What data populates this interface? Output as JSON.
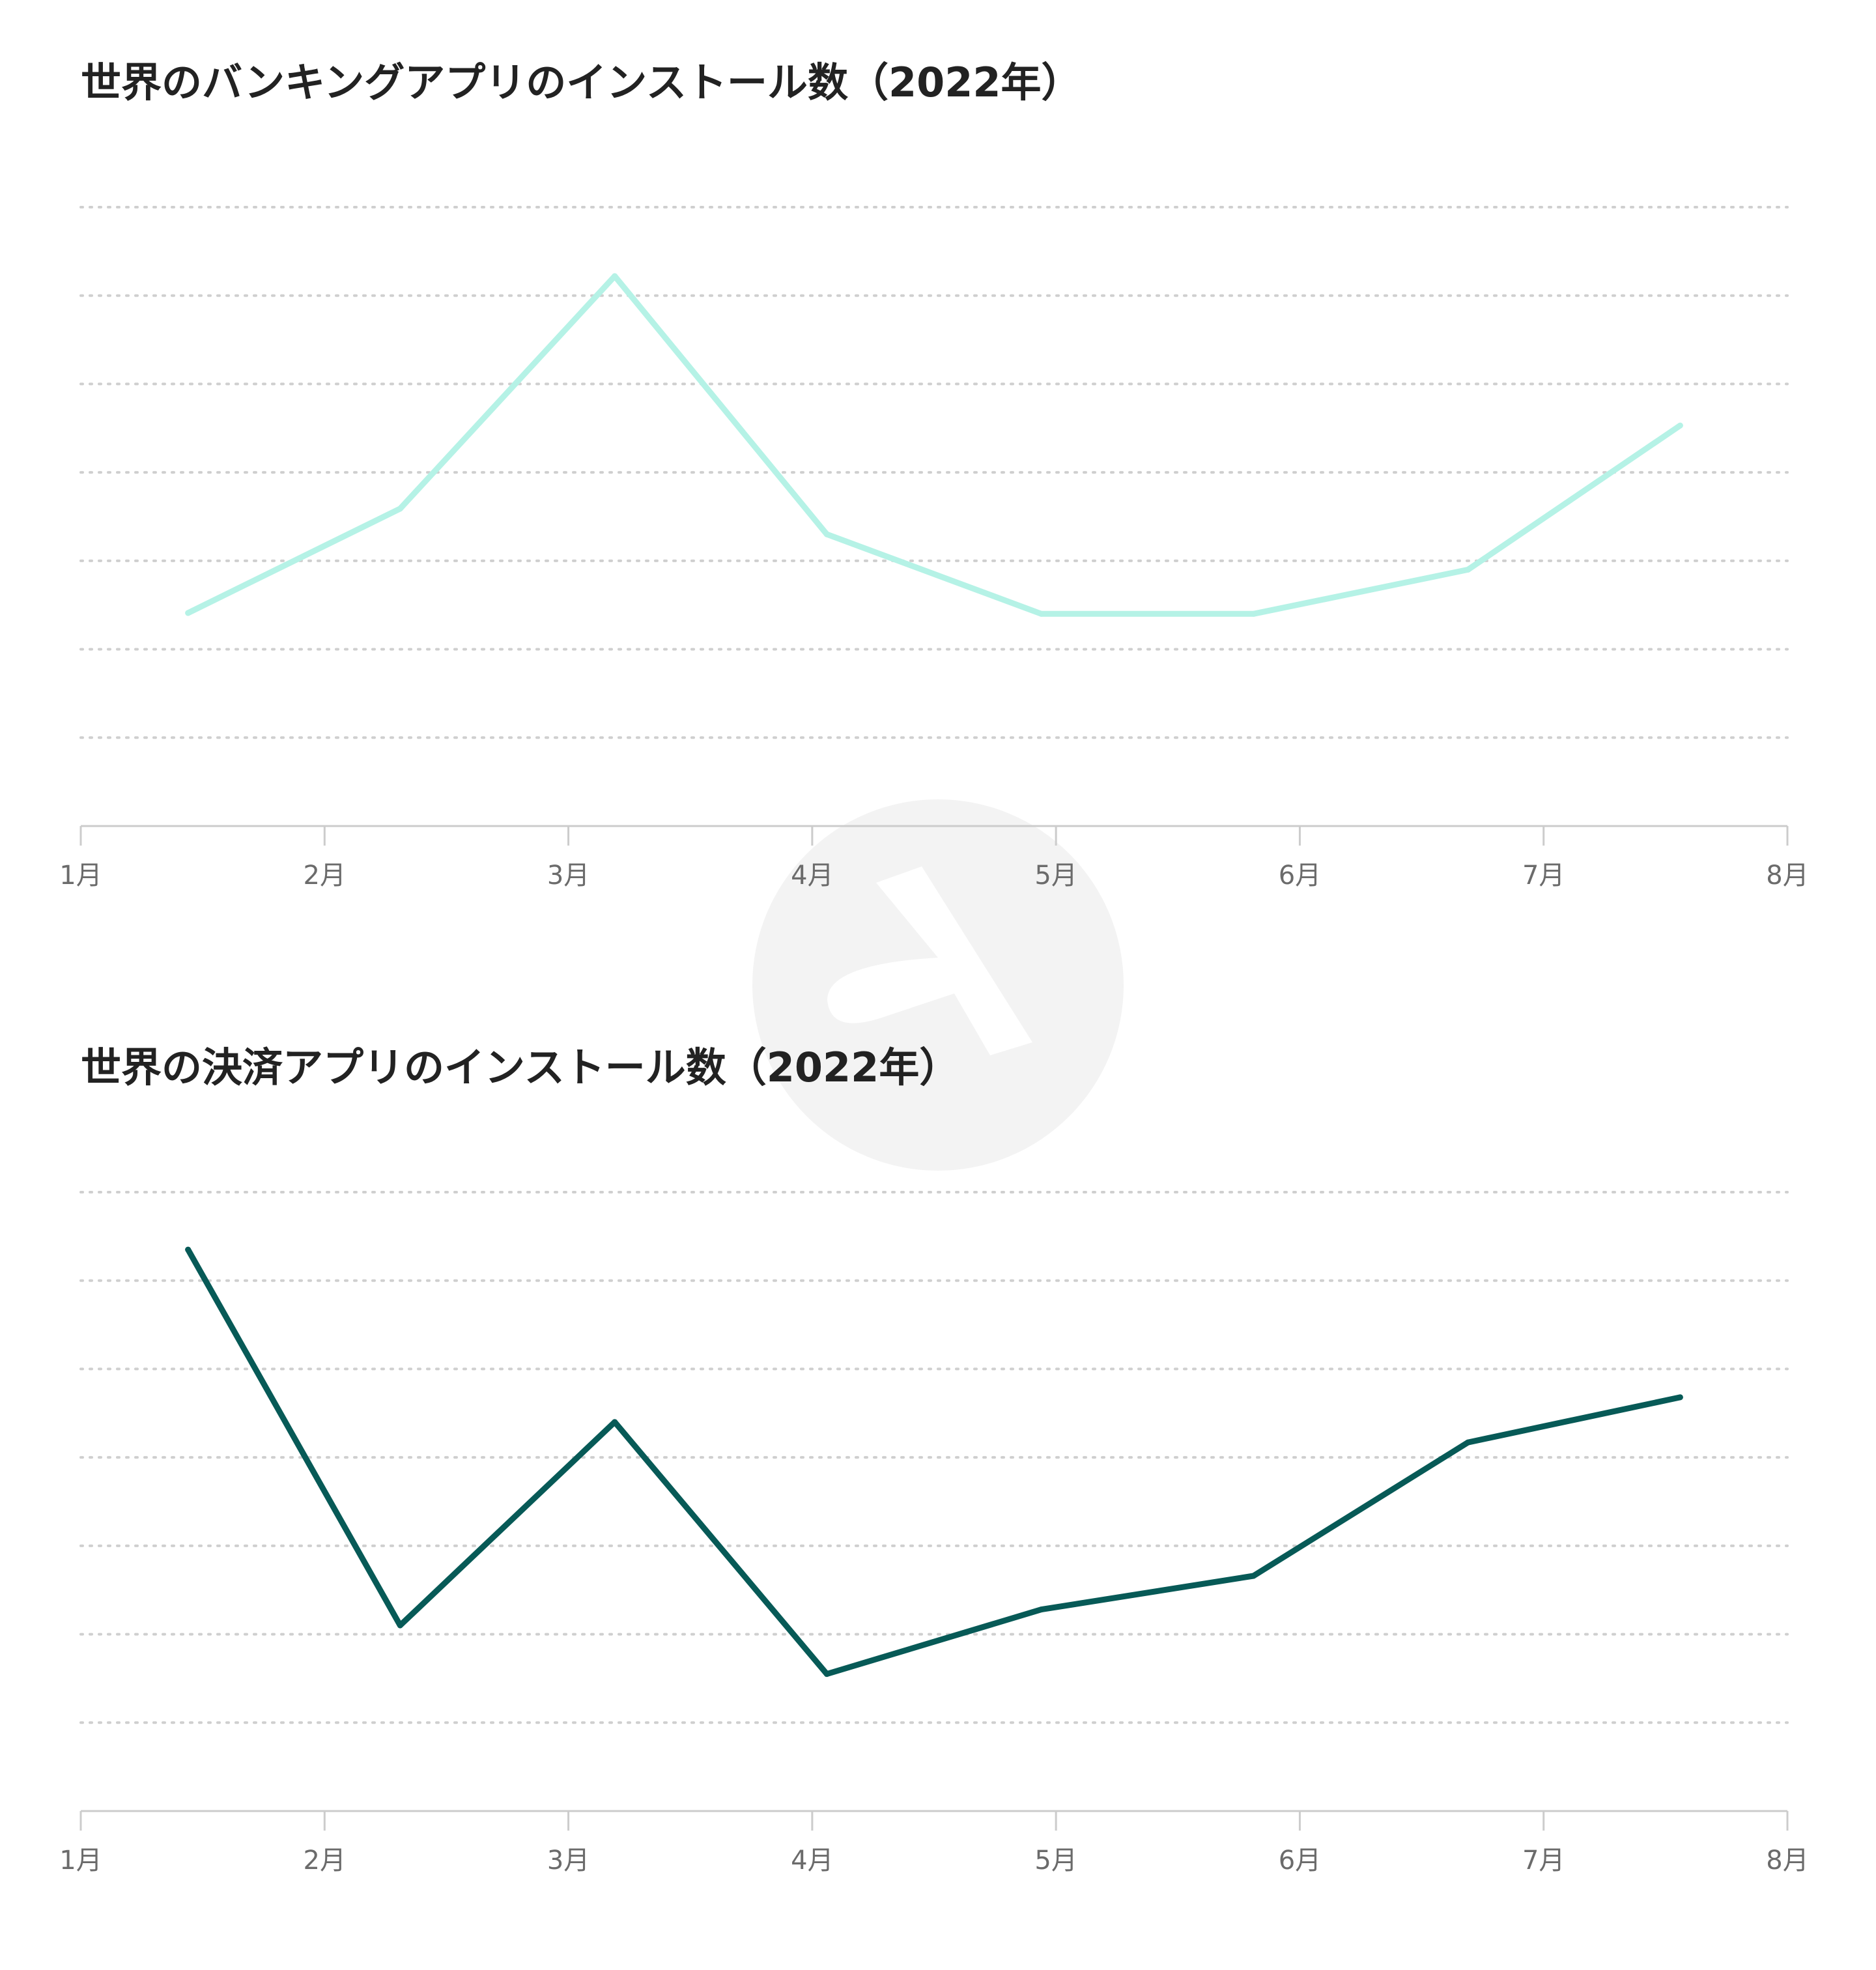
{
  "colors": {
    "background": "#ffffff",
    "grid": "#cfcfcf",
    "axis": "#cccccc",
    "title": "#222222",
    "tick_label": "#6b6b6b",
    "watermark": "#f3f3f3"
  },
  "watermark": {
    "icon": "abstract-logo-icon"
  },
  "chart_data": [
    {
      "type": "line",
      "title": "世界のバンキングアプリのインストール数（2022年）",
      "xlabel": "",
      "ylabel": "",
      "x_ticks": [
        "1月",
        "2月",
        "3月",
        "4月",
        "5月",
        "6月",
        "7月",
        "8月"
      ],
      "xlim": [
        0,
        7
      ],
      "ylim": [
        0,
        7
      ],
      "grid": true,
      "legend": "none",
      "series": [
        {
          "color": "#b5f2e6",
          "x": [
            0.44,
            1.31,
            2.19,
            3.06,
            3.94,
            4.81,
            5.69,
            6.56
          ],
          "values": [
            2.41,
            3.59,
            6.22,
            3.3,
            2.4,
            2.4,
            2.9,
            4.53
          ]
        }
      ]
    },
    {
      "type": "line",
      "title": "世界の決済アプリのインストール数（2022年）",
      "xlabel": "",
      "ylabel": "",
      "x_ticks": [
        "1月",
        "2月",
        "3月",
        "4月",
        "5月",
        "6月",
        "7月",
        "8月"
      ],
      "xlim": [
        0,
        7
      ],
      "ylim": [
        0,
        7
      ],
      "grid": true,
      "legend": "none",
      "series": [
        {
          "color": "#075a57",
          "x": [
            0.44,
            1.31,
            2.19,
            3.06,
            3.94,
            4.81,
            5.69,
            6.56
          ],
          "values": [
            6.35,
            2.1,
            4.4,
            1.55,
            2.28,
            2.66,
            4.17,
            4.68
          ]
        }
      ]
    }
  ]
}
